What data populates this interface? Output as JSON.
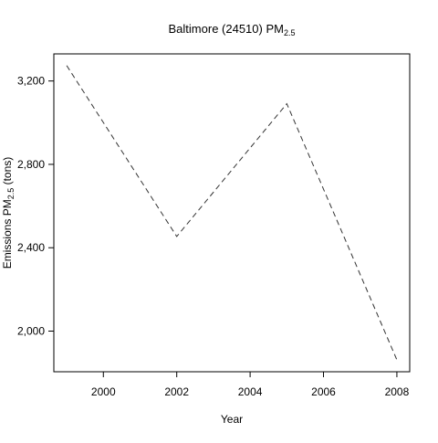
{
  "chart_data": {
    "type": "line",
    "title": {
      "main": "Baltimore (24510) PM",
      "subscript": "2.5"
    },
    "xlabel": "Year",
    "ylabel": {
      "prefix": "Emissions  PM",
      "subscript": "2.5",
      "suffix": " (tons)"
    },
    "x": [
      1999,
      2002,
      2005,
      2008
    ],
    "series": [
      {
        "values": [
          3274,
          2454,
          3091,
          1862
        ],
        "color": "#333333",
        "line_style": "dashed"
      }
    ],
    "xlim": [
      1998.65,
      2008.35
    ],
    "ylim": [
      1805,
      3330
    ],
    "x_ticks": [
      {
        "value": 2000,
        "label": "2000"
      },
      {
        "value": 2002,
        "label": "2002"
      },
      {
        "value": 2004,
        "label": "2004"
      },
      {
        "value": 2006,
        "label": "2006"
      },
      {
        "value": 2008,
        "label": "2008"
      }
    ],
    "y_ticks": [
      {
        "value": 2000,
        "label": "2,000"
      },
      {
        "value": 2400,
        "label": "2,400"
      },
      {
        "value": 2800,
        "label": "2,800"
      },
      {
        "value": 3200,
        "label": "3,200"
      }
    ],
    "grid": false,
    "legend": "none"
  }
}
